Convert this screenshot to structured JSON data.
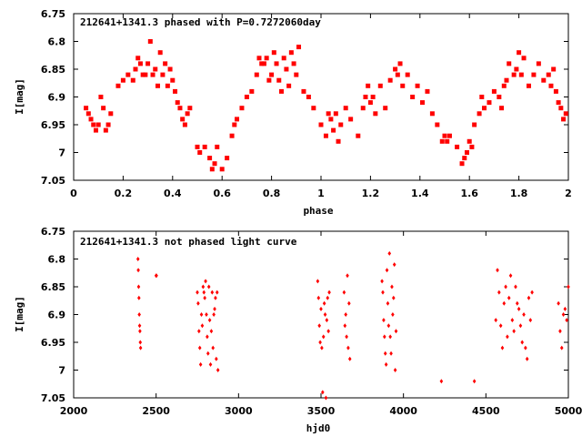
{
  "chart_data": [
    {
      "type": "scatter",
      "title": "212641+1341.3 phased with P=0.7272060day",
      "xlabel": "phase",
      "ylabel": "I[mag]",
      "xlim": [
        0,
        2
      ],
      "ylim": [
        7.05,
        6.75
      ],
      "y_inverted": true,
      "x_ticks": [
        "0",
        "0.2",
        "0.4",
        "0.6",
        "0.8",
        "1",
        "1.2",
        "1.4",
        "1.6",
        "1.8",
        "2"
      ],
      "y_ticks": [
        "6.75",
        "6.8",
        "6.85",
        "6.9",
        "6.95",
        "7",
        "7.05"
      ],
      "grid": false,
      "marker_color": "#ff0000",
      "marker": "square",
      "series": [
        {
          "x": [
            0.05,
            0.06,
            0.07,
            0.08,
            0.09,
            0.1,
            0.11,
            0.12,
            0.13,
            0.14,
            0.15,
            0.18,
            0.2,
            0.22,
            0.24,
            0.25,
            0.26,
            0.27,
            0.28,
            0.29,
            0.3,
            0.31,
            0.32,
            0.33,
            0.34,
            0.35,
            0.36,
            0.37,
            0.38,
            0.39,
            0.4,
            0.41,
            0.42,
            0.43,
            0.44,
            0.45,
            0.46,
            0.47,
            0.5,
            0.51,
            0.53,
            0.55,
            0.56,
            0.57,
            0.58,
            0.6,
            0.62,
            0.64,
            0.65,
            0.66,
            0.68,
            0.7,
            0.72,
            0.74,
            0.75,
            0.76,
            0.77,
            0.78,
            0.79,
            0.8,
            0.81,
            0.82,
            0.83,
            0.84,
            0.85,
            0.86,
            0.87,
            0.88,
            0.89,
            0.9,
            0.91,
            0.93,
            0.95,
            0.97,
            1.0,
            1.02,
            1.03,
            1.04,
            1.05,
            1.06,
            1.07,
            1.08,
            1.1,
            1.12,
            1.15,
            1.17,
            1.18,
            1.19,
            1.2,
            1.21,
            1.22,
            1.24,
            1.26,
            1.28,
            1.3,
            1.31,
            1.32,
            1.33,
            1.35,
            1.37,
            1.39,
            1.41,
            1.43,
            1.45,
            1.47,
            1.49,
            1.5,
            1.51,
            1.52,
            1.55,
            1.57,
            1.58,
            1.59,
            1.6,
            1.61,
            1.62,
            1.64,
            1.65,
            1.66,
            1.68,
            1.7,
            1.72,
            1.73,
            1.74,
            1.75,
            1.76,
            1.78,
            1.79,
            1.8,
            1.81,
            1.82,
            1.84,
            1.86,
            1.88,
            1.9,
            1.92,
            1.93,
            1.94,
            1.95,
            1.96,
            1.97,
            1.98,
            1.99
          ],
          "y": [
            6.92,
            6.93,
            6.94,
            6.95,
            6.96,
            6.95,
            6.9,
            6.92,
            6.96,
            6.95,
            6.93,
            6.88,
            6.87,
            6.86,
            6.87,
            6.85,
            6.83,
            6.84,
            6.86,
            6.86,
            6.84,
            6.8,
            6.86,
            6.85,
            6.88,
            6.82,
            6.86,
            6.84,
            6.88,
            6.85,
            6.87,
            6.89,
            6.91,
            6.92,
            6.94,
            6.95,
            6.93,
            6.92,
            6.99,
            7.0,
            6.99,
            7.01,
            7.03,
            7.02,
            6.99,
            7.03,
            7.01,
            6.97,
            6.95,
            6.94,
            6.92,
            6.9,
            6.89,
            6.86,
            6.83,
            6.84,
            6.84,
            6.83,
            6.87,
            6.86,
            6.82,
            6.84,
            6.87,
            6.89,
            6.83,
            6.85,
            6.88,
            6.82,
            6.84,
            6.86,
            6.81,
            6.89,
            6.9,
            6.92,
            6.95,
            6.97,
            6.93,
            6.94,
            6.96,
            6.93,
            6.98,
            6.95,
            6.92,
            6.94,
            6.97,
            6.92,
            6.9,
            6.88,
            6.91,
            6.9,
            6.93,
            6.88,
            6.92,
            6.87,
            6.85,
            6.86,
            6.84,
            6.88,
            6.86,
            6.9,
            6.88,
            6.91,
            6.89,
            6.93,
            6.95,
            6.98,
            6.97,
            6.98,
            6.97,
            6.99,
            7.02,
            7.01,
            7.0,
            6.98,
            6.99,
            6.95,
            6.93,
            6.9,
            6.92,
            6.91,
            6.89,
            6.9,
            6.92,
            6.88,
            6.87,
            6.84,
            6.86,
            6.85,
            6.82,
            6.86,
            6.83,
            6.88,
            6.86,
            6.84,
            6.87,
            6.86,
            6.88,
            6.85,
            6.89,
            6.91,
            6.92,
            6.94,
            6.93
          ]
        }
      ]
    },
    {
      "type": "scatter",
      "title": "212641+1341.3 not phased light curve",
      "xlabel": "hjd0",
      "ylabel": "I[mag]",
      "xlim": [
        2000,
        5000
      ],
      "ylim": [
        7.05,
        6.75
      ],
      "y_inverted": true,
      "x_ticks": [
        "2000",
        "2500",
        "3000",
        "3500",
        "4000",
        "4500",
        "5000"
      ],
      "y_ticks": [
        "6.75",
        "6.8",
        "6.85",
        "6.9",
        "6.95",
        "7",
        "7.05"
      ],
      "grid": false,
      "marker_color": "#ff0000",
      "marker": "diamond",
      "series": [
        {
          "x": [
            2390,
            2392,
            2394,
            2396,
            2398,
            2400,
            2402,
            2404,
            2406,
            2500,
            2502,
            2750,
            2755,
            2760,
            2765,
            2770,
            2775,
            2780,
            2785,
            2790,
            2795,
            2800,
            2805,
            2810,
            2815,
            2820,
            2825,
            2830,
            2835,
            2840,
            2845,
            2850,
            2855,
            2860,
            2865,
            2870,
            2875,
            3480,
            3485,
            3490,
            3495,
            3500,
            3505,
            3510,
            3515,
            3520,
            3525,
            3530,
            3535,
            3540,
            3545,
            3550,
            3640,
            3645,
            3650,
            3655,
            3660,
            3665,
            3670,
            3675,
            3870,
            3875,
            3880,
            3885,
            3890,
            3895,
            3900,
            3905,
            3910,
            3915,
            3920,
            3925,
            3930,
            3935,
            3940,
            3945,
            3950,
            3955,
            4230,
            4430,
            4560,
            4570,
            4580,
            4590,
            4600,
            4610,
            4620,
            4630,
            4640,
            4650,
            4660,
            4670,
            4680,
            4690,
            4700,
            4710,
            4720,
            4730,
            4740,
            4750,
            4760,
            4770,
            4780,
            4940,
            4950,
            4960,
            4970,
            4980,
            4990,
            5000
          ],
          "y": [
            6.8,
            6.82,
            6.85,
            6.87,
            6.9,
            6.92,
            6.93,
            6.95,
            6.96,
            6.83,
            6.83,
            6.86,
            6.88,
            6.93,
            6.96,
            6.99,
            6.9,
            6.92,
            6.85,
            6.86,
            6.87,
            6.84,
            6.9,
            6.94,
            6.97,
            6.85,
            6.91,
            6.99,
            6.93,
            6.86,
            6.96,
            6.9,
            6.89,
            6.87,
            6.98,
            6.86,
            7.0,
            6.84,
            6.87,
            6.92,
            6.95,
            6.89,
            6.96,
            7.04,
            6.94,
            6.88,
            6.9,
            7.05,
            6.91,
            6.87,
            6.93,
            6.86,
            6.86,
            6.92,
            6.9,
            6.94,
            6.83,
            6.96,
            6.88,
            6.98,
            6.84,
            6.86,
            6.91,
            6.94,
            6.97,
            6.99,
            6.82,
            6.88,
            6.92,
            6.79,
            6.94,
            6.97,
            6.85,
            6.9,
            6.87,
            6.81,
            7.0,
            6.93,
            7.02,
            7.02,
            6.91,
            6.82,
            6.86,
            6.92,
            6.96,
            6.88,
            6.85,
            6.94,
            6.87,
            6.83,
            6.91,
            6.93,
            6.85,
            6.88,
            6.89,
            6.92,
            6.95,
            6.9,
            6.96,
            6.98,
            6.87,
            6.91,
            6.86,
            6.88,
            6.93,
            6.96,
            6.9,
            6.89,
            6.91,
            6.85
          ]
        }
      ]
    }
  ]
}
